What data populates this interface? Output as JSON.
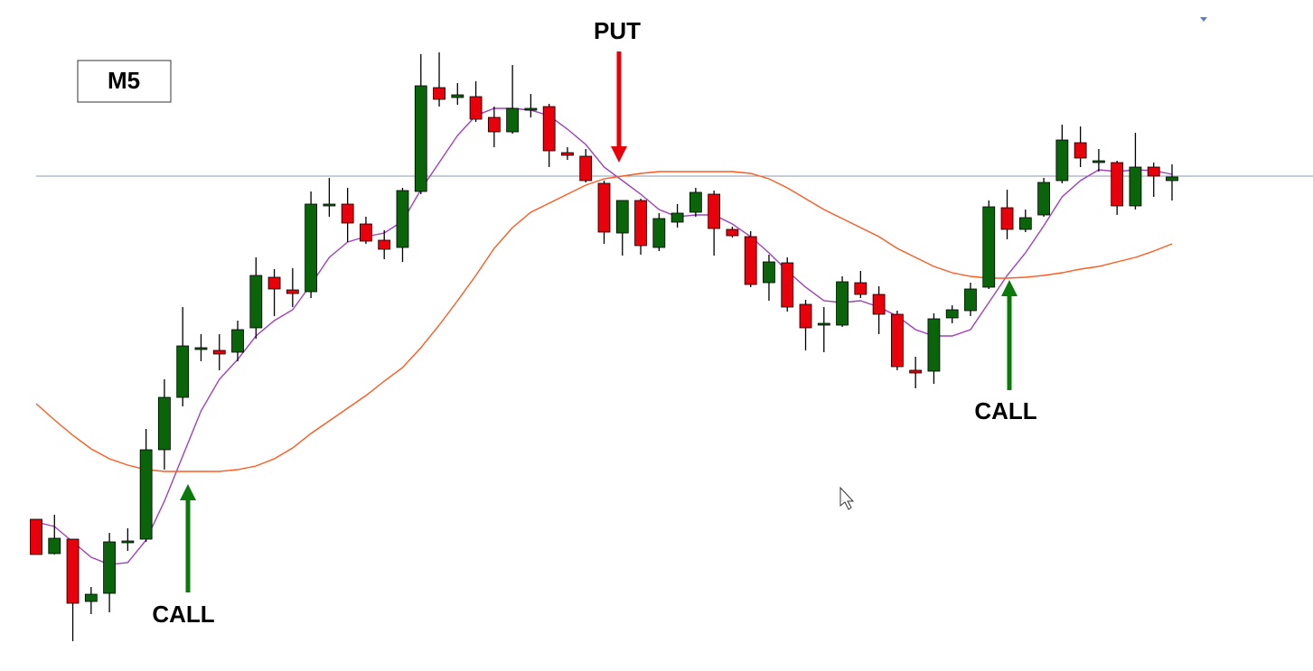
{
  "chart_data": {
    "type": "candlestick",
    "open": [
      163,
      125,
      141,
      72,
      81,
      139,
      141,
      240,
      298,
      353,
      350,
      348,
      375,
      431,
      417,
      415,
      512,
      512,
      490,
      472,
      464,
      526,
      641,
      630,
      631,
      608,
      592,
      618,
      620,
      569,
      565,
      535,
      480,
      516,
      464,
      492,
      503,
      523,
      484,
      476,
      425,
      447,
      401,
      380,
      378,
      425,
      412,
      390,
      328,
      327,
      386,
      394,
      420,
      508,
      484,
      500,
      538,
      580,
      560,
      558,
      510,
      553,
      538
    ],
    "high": [
      163,
      168,
      141,
      88,
      148,
      153,
      263,
      318,
      398,
      368,
      368,
      383,
      453,
      440,
      441,
      526,
      541,
      530,
      498,
      483,
      530,
      678,
      680,
      646,
      648,
      620,
      666,
      634,
      623,
      575,
      573,
      538,
      516,
      518,
      502,
      512,
      530,
      527,
      487,
      482,
      456,
      453,
      406,
      398,
      432,
      438,
      421,
      394,
      343,
      391,
      400,
      425,
      516,
      528,
      506,
      541,
      600,
      598,
      573,
      560,
      591,
      558,
      556
    ],
    "low": [
      124,
      124,
      28,
      58,
      60,
      128,
      138,
      218,
      288,
      338,
      328,
      338,
      363,
      388,
      398,
      408,
      498,
      470,
      468,
      451,
      448,
      523,
      620,
      622,
      603,
      575,
      590,
      608,
      553,
      561,
      536,
      468,
      455,
      456,
      460,
      486,
      498,
      455,
      475,
      420,
      405,
      393,
      350,
      348,
      376,
      408,
      368,
      328,
      308,
      313,
      380,
      388,
      418,
      473,
      481,
      498,
      535,
      553,
      548,
      500,
      506,
      520,
      516
    ],
    "close": [
      124,
      142,
      70,
      80,
      138,
      139,
      240,
      298,
      355,
      353,
      346,
      373,
      433,
      418,
      413,
      512,
      512,
      491,
      471,
      462,
      527,
      643,
      628,
      633,
      606,
      592,
      618,
      618,
      571,
      566,
      538,
      481,
      516,
      466,
      496,
      502,
      525,
      485,
      477,
      423,
      448,
      398,
      375,
      380,
      426,
      412,
      390,
      332,
      325,
      385,
      395,
      418,
      509,
      484,
      497,
      536,
      583,
      563,
      560,
      510,
      553,
      543,
      542
    ],
    "up_color": "#0a640a",
    "down_color": "#e8000b",
    "series": [
      {
        "color": "#a040c0",
        "values": [
          160,
          155,
          138,
          121,
          113,
          115,
          140,
          183,
          233,
          283,
          318,
          340,
          366,
          383,
          395,
          423,
          453,
          470,
          476,
          480,
          493,
          528,
          558,
          588,
          610,
          618,
          618,
          616,
          610,
          595,
          578,
          553,
          538,
          523,
          506,
          498,
          500,
          500,
          490,
          476,
          458,
          438,
          420,
          405,
          403,
          405,
          398,
          388,
          373,
          366,
          366,
          373,
          403,
          433,
          458,
          488,
          520,
          538,
          550,
          548,
          550,
          549,
          545
        ]
      },
      {
        "color": "#ff5a1f",
        "values": [
          291,
          273,
          256,
          241,
          230,
          223,
          218,
          216,
          216,
          216,
          216,
          218,
          222,
          230,
          242,
          258,
          272,
          286,
          300,
          316,
          331,
          353,
          378,
          405,
          433,
          463,
          486,
          503,
          513,
          523,
          533,
          540,
          543,
          546,
          548,
          548,
          548,
          548,
          548,
          546,
          540,
          530,
          518,
          506,
          496,
          486,
          476,
          463,
          453,
          443,
          436,
          432,
          430,
          430,
          431,
          433,
          436,
          440,
          443,
          448,
          453,
          460,
          468
        ]
      }
    ],
    "reference_line": 543,
    "reference_color": "#8a9aaa",
    "ylim": [
      0,
      738
    ],
    "timeframe": "M5",
    "annotations": [
      "PUT",
      "CALL",
      "CALL"
    ]
  }
}
